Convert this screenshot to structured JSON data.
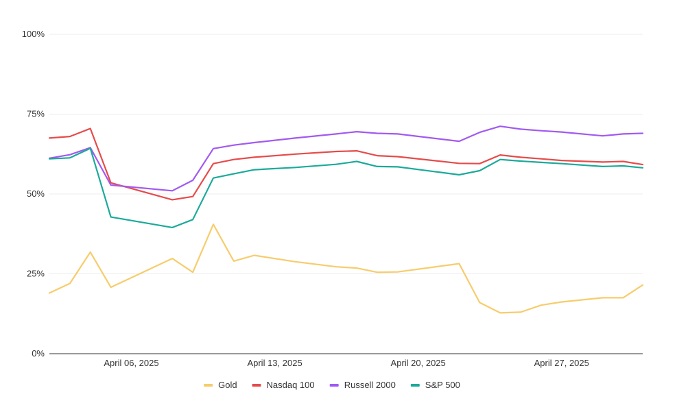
{
  "chart_data": {
    "type": "line",
    "title": "",
    "xlabel": "",
    "ylabel": "",
    "ylim": [
      0,
      100
    ],
    "y_ticks": [
      {
        "value": 0,
        "label": "0%"
      },
      {
        "value": 25,
        "label": "25%"
      },
      {
        "value": 50,
        "label": "50%"
      },
      {
        "value": 75,
        "label": "75%"
      },
      {
        "value": 100,
        "label": "100%"
      }
    ],
    "x_ticks": [
      {
        "date": "2025-04-06",
        "label": "April 06, 2025"
      },
      {
        "date": "2025-04-13",
        "label": "April 13, 2025"
      },
      {
        "date": "2025-04-20",
        "label": "April 20, 2025"
      },
      {
        "date": "2025-04-27",
        "label": "April 27, 2025"
      }
    ],
    "x_range": [
      "2025-04-02",
      "2025-04-30"
    ],
    "x": [
      "2025-04-02",
      "2025-04-03",
      "2025-04-04",
      "2025-04-05",
      "2025-04-08",
      "2025-04-09",
      "2025-04-10",
      "2025-04-11",
      "2025-04-12",
      "2025-04-14",
      "2025-04-16",
      "2025-04-17",
      "2025-04-18",
      "2025-04-19",
      "2025-04-22",
      "2025-04-23",
      "2025-04-24",
      "2025-04-25",
      "2025-04-26",
      "2025-04-27",
      "2025-04-29",
      "2025-04-30",
      "2025-04-30T23:00"
    ],
    "grid": true,
    "legend_position": "bottom",
    "series": [
      {
        "name": "Gold",
        "color": "#f7cc6b",
        "values": [
          19,
          22,
          31.8,
          20.8,
          29.8,
          25.5,
          40.5,
          29,
          30.8,
          28.8,
          27.2,
          26.8,
          25.5,
          25.6,
          28.2,
          16,
          12.8,
          13,
          15.2,
          16.2,
          17.5,
          17.5,
          21.5
        ]
      },
      {
        "name": "Nasdaq 100",
        "color": "#e64b4b",
        "values": [
          67.5,
          68,
          70.5,
          53.5,
          48.2,
          49.2,
          59.5,
          60.8,
          61.5,
          62.5,
          63.3,
          63.5,
          62,
          61.7,
          59.6,
          59.5,
          62.2,
          61.5,
          61,
          60.5,
          60,
          60.2,
          59.2
        ]
      },
      {
        "name": "Russell 2000",
        "color": "#a259f1",
        "values": [
          61.2,
          62.3,
          64.5,
          52.8,
          51,
          54.3,
          64.2,
          65.3,
          66.1,
          67.5,
          68.8,
          69.5,
          69,
          68.8,
          66.5,
          69.3,
          71.2,
          70.3,
          69.8,
          69.4,
          68.2,
          68.8,
          69
        ]
      },
      {
        "name": "S&P 500",
        "color": "#1aaa9a",
        "values": [
          61,
          61.3,
          64.3,
          42.8,
          39.5,
          42,
          55,
          56.3,
          57.6,
          58.3,
          59.3,
          60.2,
          58.6,
          58.5,
          56,
          57.3,
          60.8,
          60.3,
          59.9,
          59.5,
          58.6,
          58.8,
          58.2
        ]
      }
    ]
  }
}
